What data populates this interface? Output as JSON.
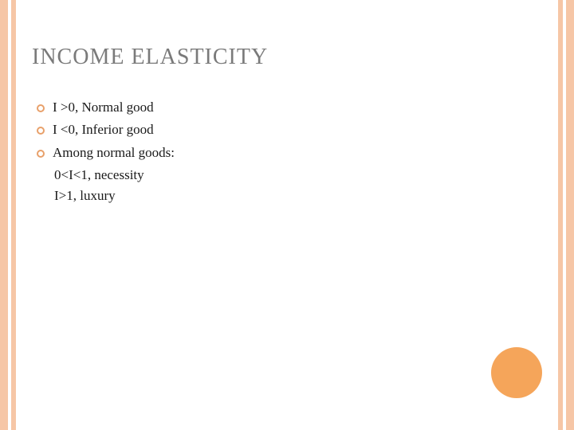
{
  "colors": {
    "stripe": "#f6c6a6",
    "title": "#7a7a7a",
    "bullet_ring": "#e8a06a",
    "circle": "#f5a55a",
    "text": "#1a1a1a"
  },
  "title": "INCOME ELASTICITY",
  "bullets": [
    "I >0, Normal good",
    "I <0, Inferior good",
    "Among normal goods:"
  ],
  "sublines": [
    "0<I<1, necessity",
    "I>1, luxury"
  ]
}
